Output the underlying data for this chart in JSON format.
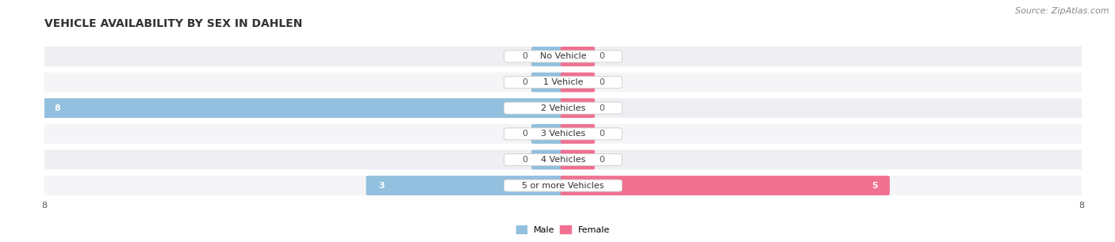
{
  "title": "VEHICLE AVAILABILITY BY SEX IN DAHLEN",
  "source": "Source: ZipAtlas.com",
  "categories": [
    "No Vehicle",
    "1 Vehicle",
    "2 Vehicles",
    "3 Vehicles",
    "4 Vehicles",
    "5 or more Vehicles"
  ],
  "male_values": [
    0,
    0,
    8,
    0,
    0,
    3
  ],
  "female_values": [
    0,
    0,
    0,
    0,
    0,
    5
  ],
  "male_color": "#92C0DE",
  "female_color": "#F07090",
  "row_bg_even": "#EEEEF3",
  "row_bg_odd": "#F5F5F8",
  "max_val": 8,
  "stub_val": 0.45,
  "legend_male": "Male",
  "legend_female": "Female",
  "title_fontsize": 10,
  "source_fontsize": 8,
  "value_fontsize": 8,
  "category_fontsize": 8,
  "axis_label_fontsize": 8
}
